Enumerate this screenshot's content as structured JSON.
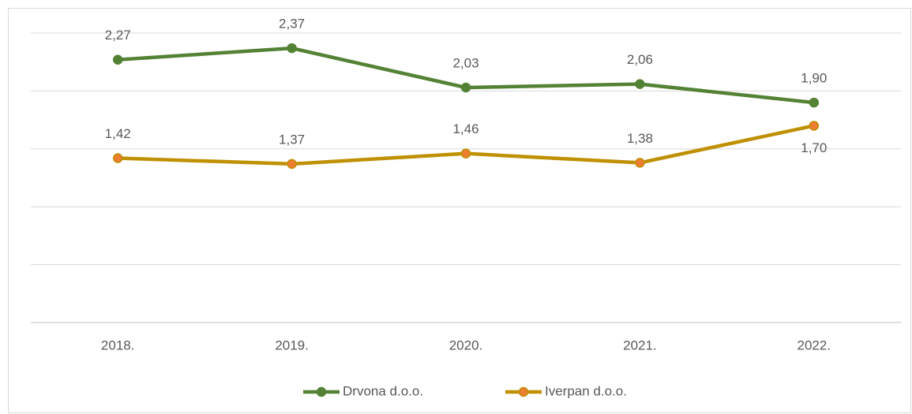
{
  "chart_data": {
    "type": "line",
    "categories": [
      "2018.",
      "2019.",
      "2020.",
      "2021.",
      "2022."
    ],
    "series": [
      {
        "name": "Drvona d.o.o.",
        "color": "#548235",
        "marker_color": "#548235",
        "values": [
          2.27,
          2.37,
          2.03,
          2.06,
          1.9
        ],
        "value_labels": [
          "2,27",
          "2,37",
          "2,03",
          "2,06",
          "1,90"
        ]
      },
      {
        "name": "Iverpan d.o.o.",
        "color": "#bf9000",
        "marker_color": "#ed7d31",
        "values": [
          1.42,
          1.37,
          1.46,
          1.38,
          1.7
        ],
        "value_labels": [
          "1,42",
          "1,37",
          "1,46",
          "1,38",
          "1,70"
        ]
      }
    ],
    "ylim": [
      0,
      2.5
    ],
    "yticks": [
      0,
      0.5,
      1,
      1.5,
      2,
      2.5
    ],
    "grid": true,
    "legend": "bottom"
  }
}
